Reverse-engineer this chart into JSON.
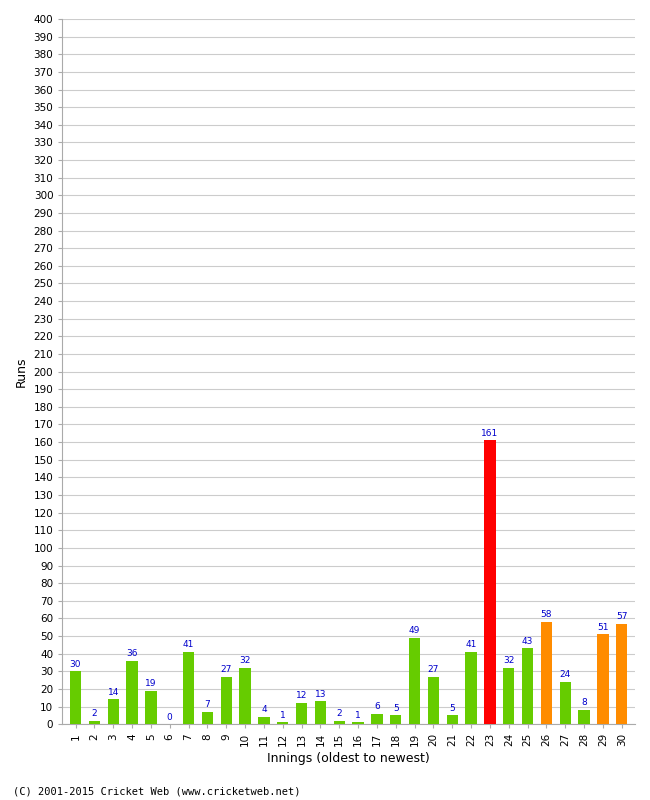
{
  "values": [
    30,
    2,
    14,
    36,
    19,
    0,
    41,
    7,
    27,
    32,
    4,
    1,
    12,
    13,
    2,
    1,
    6,
    5,
    49,
    27,
    5,
    41,
    161,
    32,
    43,
    58,
    24,
    8,
    51,
    57
  ],
  "colors": [
    "#66cc00",
    "#66cc00",
    "#66cc00",
    "#66cc00",
    "#66cc00",
    "#66cc00",
    "#66cc00",
    "#66cc00",
    "#66cc00",
    "#66cc00",
    "#66cc00",
    "#66cc00",
    "#66cc00",
    "#66cc00",
    "#66cc00",
    "#66cc00",
    "#66cc00",
    "#66cc00",
    "#66cc00",
    "#66cc00",
    "#66cc00",
    "#66cc00",
    "#ff0000",
    "#66cc00",
    "#66cc00",
    "#ff8c00",
    "#66cc00",
    "#66cc00",
    "#ff8c00",
    "#ff8c00"
  ],
  "xlabel": "Innings (oldest to newest)",
  "ylabel": "Runs",
  "ylim": [
    0,
    400
  ],
  "ytick_step": 10,
  "xtick_labels": [
    "1",
    "2",
    "3",
    "4",
    "5",
    "6",
    "7",
    "8",
    "9",
    "10",
    "11",
    "12",
    "13",
    "14",
    "15",
    "16",
    "17",
    "18",
    "19",
    "20",
    "21",
    "22",
    "23",
    "24",
    "25",
    "26",
    "27",
    "28",
    "29",
    "30"
  ],
  "footer": "(C) 2001-2015 Cricket Web (www.cricketweb.net)",
  "label_color": "#0000cc",
  "bg_color": "#ffffff",
  "grid_color": "#cccccc",
  "bar_width": 0.6
}
